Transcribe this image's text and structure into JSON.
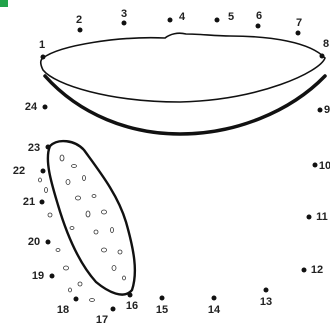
{
  "dot_labels": [
    "1",
    "2",
    "3",
    "4",
    "5",
    "6",
    "7",
    "8",
    "9",
    "10",
    "11",
    "12",
    "13",
    "14",
    "15",
    "16",
    "17",
    "18",
    "19",
    "20",
    "21",
    "22",
    "23",
    "24"
  ]
}
